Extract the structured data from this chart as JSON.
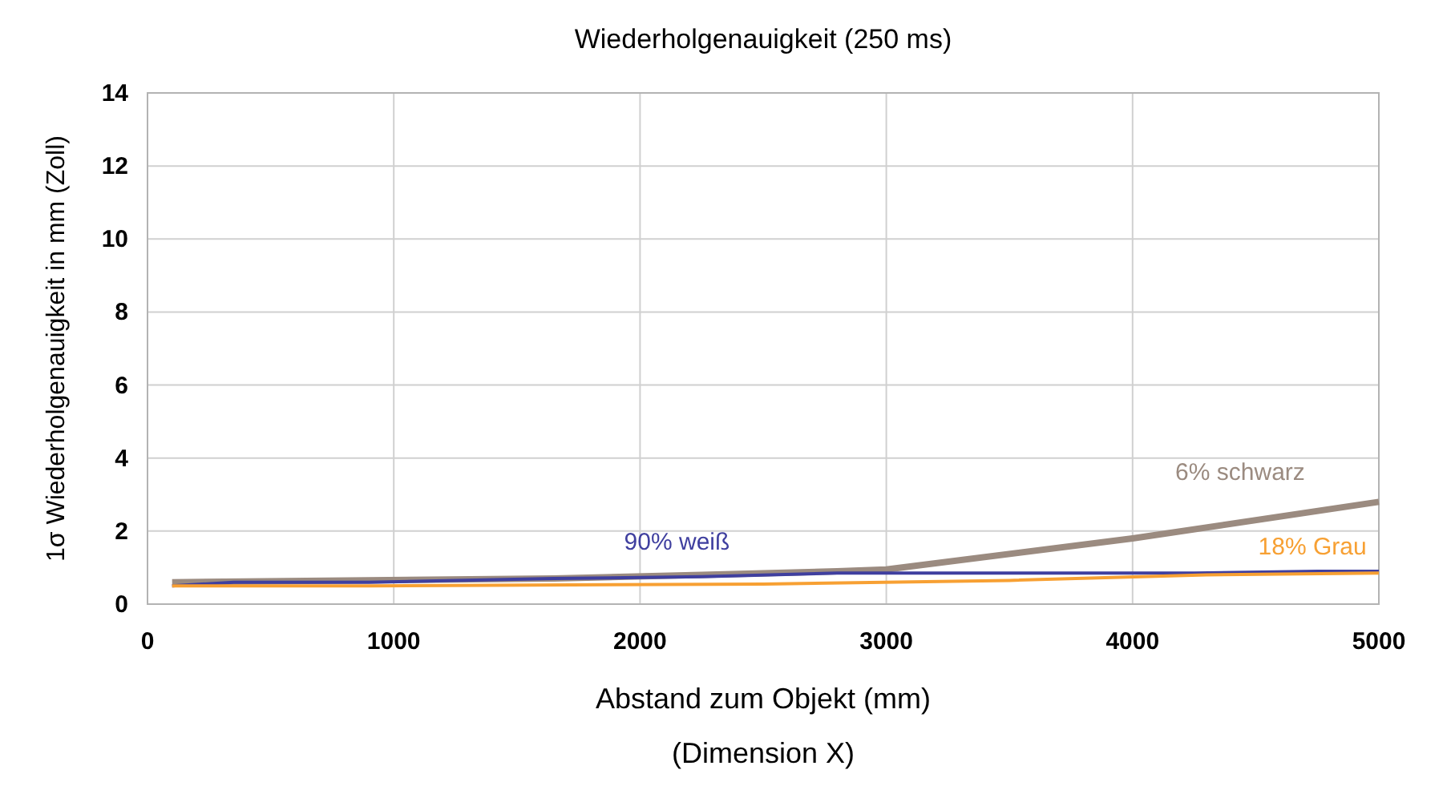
{
  "chart_data": {
    "type": "line",
    "title": "Wiederholgenauigkeit (250 ms)",
    "xlabel": "Abstand zum Objekt (mm)\n(Dimension X)",
    "ylabel": "1σ Wiederholgenauigkeit in mm (Zoll)",
    "xlim": [
      0,
      5000
    ],
    "xticks": [
      0,
      1000,
      2000,
      3000,
      4000,
      5000
    ],
    "ylim": [
      0,
      14
    ],
    "yticks": [
      0,
      2,
      4,
      6,
      8,
      10,
      12,
      14
    ],
    "grid": true,
    "series": [
      {
        "name": "6% schwarz",
        "color": "#9b8b80",
        "x": [
          100,
          1650,
          2250,
          2800,
          3000,
          4000,
          5000
        ],
        "values": [
          0.6,
          0.7,
          0.8,
          0.9,
          0.95,
          1.8,
          2.8
        ]
      },
      {
        "name": "90% weiß",
        "color": "#3f3f9f",
        "x": [
          100,
          350,
          900,
          1650,
          2250,
          2800,
          3500,
          4250,
          4750,
          5000
        ],
        "values": [
          0.5,
          0.6,
          0.6,
          0.7,
          0.75,
          0.85,
          0.85,
          0.85,
          0.9,
          0.9
        ]
      },
      {
        "name": "18% Grau",
        "color": "#f7a033",
        "x": [
          100,
          900,
          2500,
          3500,
          4300,
          5000
        ],
        "values": [
          0.5,
          0.5,
          0.55,
          0.65,
          0.8,
          0.85
        ]
      }
    ]
  }
}
